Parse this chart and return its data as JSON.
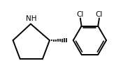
{
  "background": "#ffffff",
  "bond_color": "#000000",
  "bond_lw": 1.4,
  "text_color": "#000000",
  "cl_fontsize": 7.5,
  "nh_fontsize": 7.5,
  "figsize": [
    1.96,
    1.15
  ],
  "dpi": 100,
  "xlim": [
    0.0,
    5.8
  ],
  "ylim": [
    0.3,
    3.5
  ]
}
